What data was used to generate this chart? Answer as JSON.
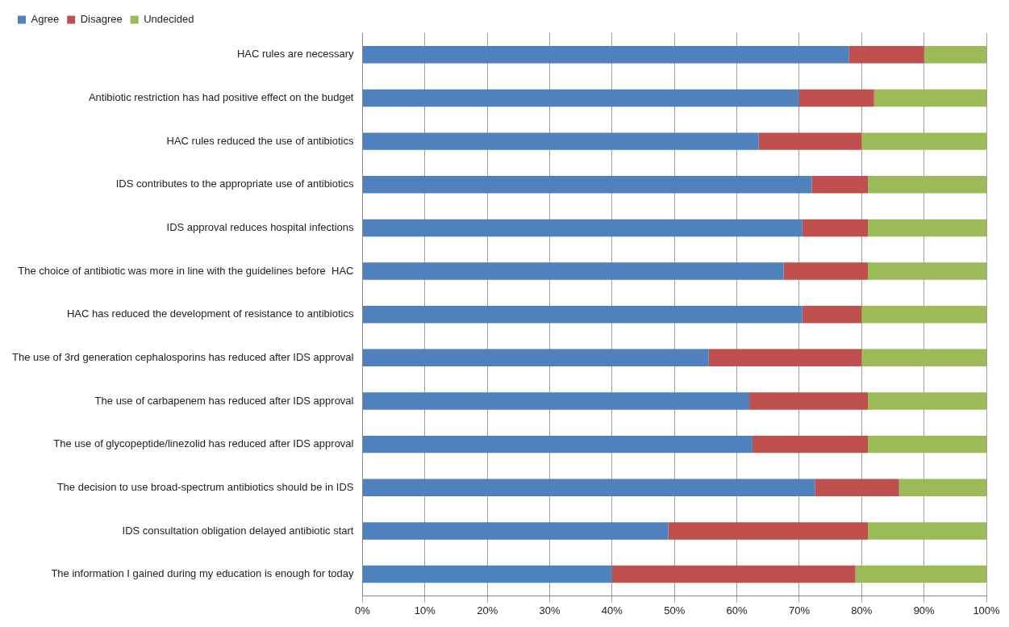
{
  "chart_data": {
    "type": "bar",
    "orientation": "horizontal",
    "stacked": true,
    "categories": [
      "HAC rules are necessary",
      "Antibiotic restriction has had positive effect on the budget",
      "HAC rules reduced the use of antibiotics",
      "IDS contributes to the appropriate use of antibiotics",
      "IDS approval reduces hospital infections",
      "The choice of antibiotic was more in line with the guidelines before  HAC",
      "HAC has reduced the development of resistance to antibiotics",
      "The use of 3rd generation cephalosporins has reduced after IDS approval",
      "The use of carbapenem has reduced after IDS approval",
      "The use of glycopeptide/linezolid has reduced after IDS approval",
      "The decision to use broad-spectrum antibiotics should be in IDS",
      "IDS consultation obligation delayed antibiotic start",
      "The information I gained during my education is enough for today"
    ],
    "series": [
      {
        "name": "Agree",
        "color": "#4f81bd",
        "values": [
          78,
          70,
          63.5,
          72,
          70.5,
          67.5,
          70.5,
          55.5,
          62,
          62.5,
          72.5,
          49,
          40
        ]
      },
      {
        "name": "Disagree",
        "color": "#c0504d",
        "values": [
          12,
          12,
          16.5,
          9,
          10.5,
          13.5,
          9.5,
          24.5,
          19,
          18.5,
          13.5,
          32,
          39
        ]
      },
      {
        "name": "Undecided",
        "color": "#9bbb59",
        "values": [
          10,
          18,
          20,
          19,
          19,
          19,
          20,
          20,
          19,
          19,
          14,
          19,
          21
        ]
      }
    ],
    "xlim": [
      0,
      100
    ],
    "xticks": [
      {
        "value": 0,
        "label": "0%"
      },
      {
        "value": 10,
        "label": "10%"
      },
      {
        "value": 20,
        "label": "20%"
      },
      {
        "value": 30,
        "label": "30%"
      },
      {
        "value": 40,
        "label": "40%"
      },
      {
        "value": 50,
        "label": "50%"
      },
      {
        "value": 60,
        "label": "60%"
      },
      {
        "value": 70,
        "label": "70%"
      },
      {
        "value": 80,
        "label": "80%"
      },
      {
        "value": 90,
        "label": "90%"
      },
      {
        "value": 100,
        "label": "100%"
      }
    ],
    "grid": "x",
    "legend": "top left"
  }
}
